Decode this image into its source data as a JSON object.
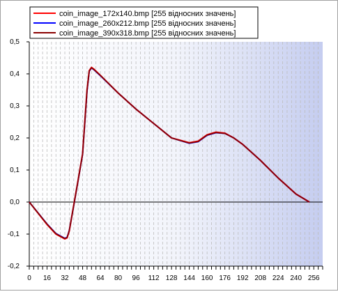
{
  "chart_data": {
    "type": "line",
    "title": "",
    "xlabel": "",
    "ylabel": "",
    "xlim": [
      0,
      264
    ],
    "ylim": [
      -0.2,
      0.5
    ],
    "x_ticks": [
      0,
      16,
      32,
      48,
      64,
      80,
      96,
      112,
      128,
      144,
      160,
      176,
      192,
      208,
      224,
      240,
      256
    ],
    "y_ticks": [
      -0.2,
      -0.1,
      0.0,
      0.1,
      0.2,
      0.3,
      0.4,
      0.5
    ],
    "x_tick_labels": [
      "0",
      "16",
      "32",
      "48",
      "64",
      "80",
      "96",
      "112",
      "128",
      "144",
      "160",
      "176",
      "192",
      "208",
      "224",
      "240",
      "256"
    ],
    "y_tick_labels": [
      "-0,2",
      "-0,1",
      "0,0",
      "0,1",
      "0,2",
      "0,3",
      "0,4",
      "0,5"
    ],
    "grid": "vertical-dashed",
    "legend_position": "top",
    "colors": {
      "series1": "#ff0000",
      "series2": "#0000ff",
      "series3": "#8b0000",
      "background_right": "#c5cdf0",
      "zero_line": "#000000"
    },
    "series": [
      {
        "name": "coin_image_172x140.bmp [255 відносних значень]",
        "x": [
          0,
          16,
          24,
          32,
          34,
          36,
          40,
          44,
          48,
          52,
          54,
          56,
          58,
          64,
          80,
          96,
          112,
          128,
          144,
          152,
          160,
          168,
          176,
          184,
          192,
          208,
          224,
          240,
          252
        ],
        "y": [
          0.0,
          -0.07,
          -0.1,
          -0.115,
          -0.112,
          -0.09,
          -0.01,
          0.07,
          0.15,
          0.35,
          0.41,
          0.42,
          0.415,
          0.395,
          0.34,
          0.29,
          0.245,
          0.2,
          0.185,
          0.19,
          0.21,
          0.218,
          0.215,
          0.2,
          0.18,
          0.13,
          0.075,
          0.025,
          0.0
        ]
      },
      {
        "name": "coin_image_260x212.bmp [255 відносних значень]",
        "x": [
          0,
          16,
          24,
          32,
          34,
          36,
          40,
          44,
          48,
          52,
          54,
          56,
          58,
          64,
          80,
          96,
          112,
          128,
          144,
          152,
          160,
          168,
          176,
          184,
          192,
          208,
          224,
          240,
          252
        ],
        "y": [
          0.0,
          -0.068,
          -0.098,
          -0.113,
          -0.11,
          -0.088,
          -0.012,
          0.068,
          0.148,
          0.345,
          0.408,
          0.418,
          0.413,
          0.394,
          0.34,
          0.29,
          0.245,
          0.2,
          0.183,
          0.188,
          0.208,
          0.216,
          0.214,
          0.2,
          0.18,
          0.13,
          0.075,
          0.025,
          0.0
        ]
      },
      {
        "name": "coin_image_390x318.bmp [255 відносних значень]",
        "x": [
          0,
          16,
          24,
          32,
          34,
          36,
          40,
          44,
          48,
          52,
          54,
          56,
          58,
          64,
          80,
          96,
          112,
          128,
          144,
          152,
          160,
          168,
          176,
          184,
          192,
          208,
          224,
          240,
          252
        ],
        "y": [
          0.0,
          -0.069,
          -0.099,
          -0.114,
          -0.111,
          -0.089,
          -0.011,
          0.069,
          0.149,
          0.348,
          0.409,
          0.419,
          0.414,
          0.395,
          0.34,
          0.29,
          0.245,
          0.2,
          0.184,
          0.189,
          0.209,
          0.217,
          0.214,
          0.2,
          0.18,
          0.13,
          0.075,
          0.025,
          0.0
        ]
      }
    ]
  }
}
